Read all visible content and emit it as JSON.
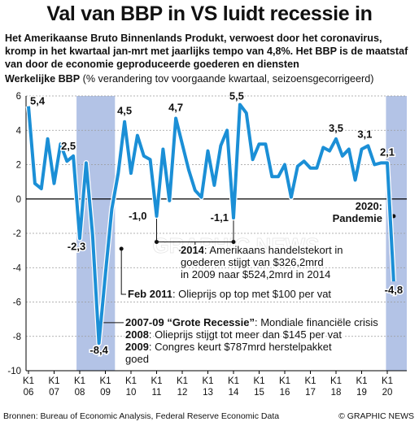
{
  "header": {
    "title": "Val van BBP in VS luidt recessie in",
    "subtitle": "Het Amerikaanse Bruto Binnenlands Produkt, verwoest door het coronavirus, kromp in het kwartaal jan-mrt met jaarlijks tempo van 4,8%. Het BBP is de maatstaf van door de economie geproduceerde goederen en diensten"
  },
  "axis_title": {
    "bold": "Werkelijke BBP",
    "rest": " (% verandering tov voorgaande kwartaal, seizoensgecorrigeerd)"
  },
  "footer": {
    "sources": "Bronnen: Bureau of Economic Analysis, Federal Reserve Economic Data",
    "credit": "© GRAPHIC NEWS"
  },
  "colors": {
    "line": "#1b8fd6",
    "band": "#b3c3e6",
    "ann_text": "#111111"
  },
  "chart_data": {
    "type": "line",
    "title": "Werkelijke BBP",
    "ylabel": "(% verandering tov voorgaande kwartaal, seizoensgecorrigeerd)",
    "ylim": [
      -10,
      6
    ],
    "yticks": [
      6,
      4,
      2,
      0,
      -2,
      -4,
      -6,
      -8,
      -10
    ],
    "x_tick_prefix": "K1",
    "x_ticks": [
      "06",
      "07",
      "08",
      "09",
      "10",
      "11",
      "12",
      "13",
      "14",
      "15",
      "16",
      "17",
      "18",
      "19",
      "20"
    ],
    "recession_bands": [
      [
        "08 K1",
        "09 K2"
      ],
      [
        "20 K1",
        "20 K1"
      ]
    ],
    "series": [
      {
        "values": [
          5.4,
          0.9,
          0.6,
          3.5,
          0.9,
          3.2,
          2.2,
          2.5,
          -2.3,
          2.1,
          -2.1,
          -8.4,
          -4.4,
          -0.6,
          1.5,
          4.5,
          1.5,
          3.7,
          2.5,
          2.3,
          -1.0,
          2.9,
          -0.1,
          4.7,
          3.2,
          1.7,
          0.5,
          0.1,
          2.8,
          0.8,
          3.1,
          4.0,
          -1.1,
          5.5,
          5.0,
          2.3,
          3.2,
          3.2,
          1.3,
          1.3,
          2.0,
          0.1,
          1.9,
          2.2,
          1.8,
          1.8,
          3.0,
          2.8,
          3.5,
          2.5,
          2.9,
          1.1,
          2.9,
          3.1,
          2.0,
          2.1,
          2.1,
          -4.8
        ]
      }
    ],
    "point_labels": [
      {
        "text": "5,4",
        "value": 5.4
      },
      {
        "text": "2,5",
        "value": 2.5
      },
      {
        "text": "-2,3",
        "value": -2.3
      },
      {
        "text": "-8,4",
        "value": -8.4
      },
      {
        "text": "4,5",
        "value": 4.5
      },
      {
        "text": "-1,0",
        "value": -1.0
      },
      {
        "text": "4,7",
        "value": 4.7
      },
      {
        "text": "-1,1",
        "value": -1.1
      },
      {
        "text": "5,5",
        "value": 5.5
      },
      {
        "text": "3,5",
        "value": 3.5
      },
      {
        "text": "3,1",
        "value": 3.1
      },
      {
        "text": "2,1",
        "value": 2.1
      },
      {
        "text": "-4,8",
        "value": -4.8
      }
    ],
    "annotations": [
      {
        "lines": [
          {
            "b": "2020:"
          },
          {
            "b": "Pandemie"
          }
        ]
      },
      {
        "lines": [
          {
            "b": "2014",
            "t": ": Amerikaans handelstekort in"
          },
          {
            "t": "goederen stijgt van $326,2mrd"
          },
          {
            "t": "in 2009 naar $524,2mrd in 2014"
          }
        ]
      },
      {
        "lines": [
          {
            "b": "Feb 2011",
            "t": ": Olieprijs op top met $100 per vat"
          }
        ]
      },
      {
        "lines": [
          {
            "b": "2007-09 “Grote Recessie”",
            "t": ": Mondiale financiële crisis"
          },
          {
            "b": "2008",
            "t": ": Olieprijs stijgt tot meer dan $145 per vat"
          },
          {
            "b": "2009",
            "t": ": Congres keurt $787mrd herstelpakket"
          },
          {
            "t": "goed"
          }
        ]
      }
    ]
  }
}
